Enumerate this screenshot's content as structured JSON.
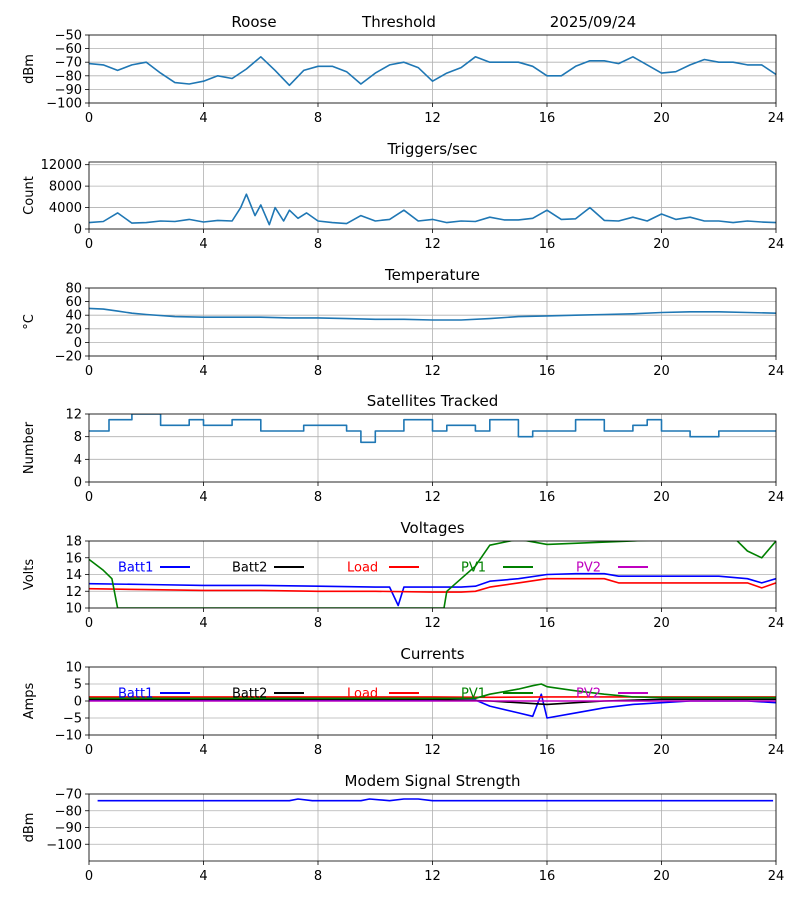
{
  "header": {
    "station": "Roose",
    "label": "Threshold",
    "date": "2025/09/24"
  },
  "chart_data": [
    {
      "id": "threshold",
      "type": "line",
      "title": "",
      "ylabel": "dBm",
      "xlim": [
        0,
        24
      ],
      "xticks": [
        0,
        4,
        8,
        12,
        16,
        20,
        24
      ],
      "ylim": [
        -100,
        -50
      ],
      "yticks": [
        -100,
        -90,
        -80,
        -70,
        -60,
        -50
      ],
      "series": [
        {
          "name": "Threshold",
          "color": "#1f77b4",
          "x": [
            0,
            0.5,
            1,
            1.5,
            2,
            2.5,
            3,
            3.5,
            4,
            4.5,
            5,
            5.5,
            6,
            6.5,
            7,
            7.5,
            8,
            8.5,
            9,
            9.5,
            10,
            10.5,
            11,
            11.5,
            12,
            12.5,
            13,
            13.5,
            14,
            14.5,
            15,
            15.5,
            16,
            16.5,
            17,
            17.5,
            18,
            18.5,
            19,
            19.5,
            20,
            20.5,
            21,
            21.5,
            22,
            22.5,
            23,
            23.5,
            24
          ],
          "y": [
            -71,
            -72,
            -76,
            -72,
            -70,
            -78,
            -85,
            -86,
            -84,
            -80,
            -82,
            -75,
            -66,
            -76,
            -87,
            -76,
            -73,
            -73,
            -77,
            -86,
            -78,
            -72,
            -70,
            -74,
            -84,
            -78,
            -74,
            -66,
            -70,
            -70,
            -70,
            -73,
            -80,
            -80,
            -73,
            -69,
            -69,
            -71,
            -66,
            -72,
            -78,
            -77,
            -72,
            -68,
            -70,
            -70,
            -72,
            -72,
            -79
          ]
        }
      ]
    },
    {
      "id": "triggers",
      "type": "line",
      "title": "Triggers/sec",
      "ylabel": "Count",
      "xlim": [
        0,
        24
      ],
      "xticks": [
        0,
        4,
        8,
        12,
        16,
        20,
        24
      ],
      "ylim": [
        0,
        12500
      ],
      "yticks": [
        0,
        4000,
        8000,
        12000
      ],
      "series": [
        {
          "name": "Triggers",
          "color": "#1f77b4",
          "x": [
            0,
            0.5,
            1,
            1.5,
            2,
            2.5,
            3,
            3.5,
            4,
            4.5,
            5,
            5.3,
            5.5,
            5.8,
            6,
            6.3,
            6.5,
            6.8,
            7,
            7.3,
            7.6,
            8,
            8.5,
            9,
            9.5,
            10,
            10.5,
            11,
            11.5,
            12,
            12.5,
            13,
            13.5,
            14,
            14.5,
            15,
            15.5,
            16,
            16.5,
            17,
            17.5,
            18,
            18.5,
            19,
            19.5,
            20,
            20.5,
            21,
            21.5,
            22,
            22.5,
            23,
            23.5,
            24
          ],
          "y": [
            1200,
            1400,
            3000,
            1100,
            1200,
            1500,
            1400,
            1800,
            1300,
            1600,
            1500,
            4000,
            6500,
            2500,
            4500,
            800,
            4000,
            1500,
            3500,
            2000,
            3000,
            1500,
            1200,
            1000,
            2500,
            1500,
            1800,
            3500,
            1500,
            1800,
            1200,
            1500,
            1400,
            2200,
            1700,
            1700,
            2000,
            3500,
            1800,
            1900,
            4000,
            1600,
            1500,
            2200,
            1500,
            2800,
            1800,
            2200,
            1500,
            1500,
            1200,
            1500,
            1300,
            1200
          ]
        }
      ]
    },
    {
      "id": "temperature",
      "type": "line",
      "title": "Temperature",
      "ylabel": "°C",
      "xlim": [
        0,
        24
      ],
      "xticks": [
        0,
        4,
        8,
        12,
        16,
        20,
        24
      ],
      "ylim": [
        -20,
        80
      ],
      "yticks": [
        -20,
        0,
        20,
        40,
        60,
        80
      ],
      "series": [
        {
          "name": "Temperature",
          "color": "#1f77b4",
          "x": [
            0,
            0.5,
            1,
            1.5,
            2,
            3,
            4,
            5,
            6,
            7,
            8,
            9,
            10,
            11,
            12,
            13,
            14,
            15,
            16,
            17,
            18,
            19,
            20,
            21,
            22,
            23,
            24
          ],
          "y": [
            50,
            49,
            46,
            43,
            41,
            38,
            37,
            37,
            37,
            36,
            36,
            35,
            34,
            34,
            33,
            33,
            35,
            38,
            39,
            40,
            41,
            42,
            44,
            45,
            45,
            44,
            43
          ]
        }
      ]
    },
    {
      "id": "satellites",
      "type": "line",
      "title": "Satellites Tracked",
      "ylabel": "Number",
      "xlim": [
        0,
        24
      ],
      "xticks": [
        0,
        4,
        8,
        12,
        16,
        20,
        24
      ],
      "ylim": [
        0,
        12
      ],
      "yticks": [
        0,
        4,
        8,
        12
      ],
      "series": [
        {
          "name": "Satellites",
          "color": "#1f77b4",
          "step": true,
          "x": [
            0,
            0.7,
            1.5,
            2.5,
            3.5,
            4,
            5,
            6,
            7,
            7.5,
            8,
            9,
            9.5,
            10,
            11,
            12,
            12.5,
            13.5,
            14,
            15,
            15.5,
            16,
            17,
            18,
            19,
            19.5,
            20,
            21,
            22,
            23,
            24
          ],
          "y": [
            9,
            11,
            12,
            10,
            11,
            10,
            11,
            9,
            9,
            10,
            10,
            9,
            7,
            9,
            11,
            9,
            10,
            9,
            11,
            8,
            9,
            9,
            11,
            9,
            10,
            11,
            9,
            8,
            9,
            9,
            9
          ]
        }
      ]
    },
    {
      "id": "voltages",
      "type": "line",
      "title": "Voltages",
      "ylabel": "Volts",
      "xlim": [
        0,
        24
      ],
      "xticks": [
        0,
        4,
        8,
        12,
        16,
        20,
        24
      ],
      "ylim": [
        10,
        18
      ],
      "yticks": [
        10,
        12,
        14,
        16,
        18
      ],
      "series": [
        {
          "name": "Batt1",
          "color": "#0000ff",
          "x": [
            0,
            2,
            4,
            6,
            8,
            10,
            10.5,
            10.8,
            11,
            12,
            13,
            13.5,
            14,
            15,
            16,
            17,
            18,
            18.5,
            20,
            22,
            23,
            23.5,
            24
          ],
          "y": [
            12.9,
            12.8,
            12.7,
            12.7,
            12.6,
            12.5,
            12.5,
            10.3,
            12.5,
            12.5,
            12.5,
            12.6,
            13.2,
            13.5,
            14,
            14.1,
            14.1,
            13.8,
            13.8,
            13.8,
            13.5,
            13,
            13.5
          ]
        },
        {
          "name": "Batt2",
          "color": "#000000",
          "x": [],
          "y": []
        },
        {
          "name": "Load",
          "color": "#ff0000",
          "x": [
            0,
            2,
            4,
            6,
            8,
            10,
            12,
            13,
            13.5,
            14,
            15,
            16,
            17,
            18,
            18.5,
            20,
            22,
            23,
            23.5,
            24
          ],
          "y": [
            12.3,
            12.2,
            12.1,
            12.1,
            12,
            12,
            11.9,
            11.9,
            12,
            12.5,
            13,
            13.5,
            13.5,
            13.5,
            13,
            13,
            13,
            13,
            12.4,
            13
          ]
        },
        {
          "name": "PV1",
          "color": "#008000",
          "x": [
            0,
            0.5,
            0.8,
            1,
            12.4,
            12.5,
            13,
            13.5,
            14,
            15,
            16,
            22.5,
            23,
            23.5,
            24
          ],
          "y": [
            15.8,
            14.5,
            13.5,
            10,
            10,
            12,
            13.5,
            15,
            17.5,
            18.2,
            17.6,
            18.5,
            16.8,
            16,
            18
          ]
        },
        {
          "name": "PV2",
          "color": "#bf00bf",
          "x": [],
          "y": []
        }
      ]
    },
    {
      "id": "currents",
      "type": "line",
      "title": "Currents",
      "ylabel": "Amps",
      "xlim": [
        0,
        24
      ],
      "xticks": [
        0,
        4,
        8,
        12,
        16,
        20,
        24
      ],
      "ylim": [
        -10,
        10
      ],
      "yticks": [
        -10,
        -5,
        0,
        5,
        10
      ],
      "series": [
        {
          "name": "Batt1",
          "color": "#0000ff",
          "x": [
            0,
            4,
            8,
            12,
            13.5,
            14,
            15,
            15.5,
            15.8,
            16,
            17,
            18,
            19,
            20,
            21,
            22,
            23,
            24
          ],
          "y": [
            0.3,
            0.3,
            0.3,
            0.3,
            0.3,
            -1.5,
            -3.5,
            -4.5,
            2,
            -5,
            -3.5,
            -2,
            -1,
            -0.5,
            0,
            0,
            0,
            -0.5
          ]
        },
        {
          "name": "Batt2",
          "color": "#000000",
          "x": [
            0,
            4,
            8,
            12,
            14,
            15,
            16,
            17,
            18,
            20,
            24
          ],
          "y": [
            0.5,
            0.5,
            0.5,
            0.5,
            0,
            -0.5,
            -1,
            -0.5,
            0,
            0.5,
            0.5
          ]
        },
        {
          "name": "Load",
          "color": "#ff0000",
          "x": [
            0,
            4,
            8,
            12,
            14,
            16,
            18,
            20,
            24
          ],
          "y": [
            1.2,
            1.2,
            1.2,
            1.2,
            1.1,
            1.2,
            1.2,
            1.2,
            1.2
          ]
        },
        {
          "name": "PV1",
          "color": "#008000",
          "x": [
            0,
            4,
            8,
            12,
            13.5,
            14,
            15,
            15.5,
            15.8,
            16,
            17,
            18,
            19,
            20,
            22,
            24
          ],
          "y": [
            0.8,
            0.8,
            0.8,
            0.8,
            0.8,
            2,
            3.5,
            4.5,
            5,
            4.2,
            3,
            2,
            1.2,
            1,
            1,
            1
          ]
        },
        {
          "name": "PV2",
          "color": "#bf00bf",
          "x": [
            0,
            24
          ],
          "y": [
            0,
            0
          ]
        }
      ]
    },
    {
      "id": "modem",
      "type": "line",
      "title": "Modem Signal Strength",
      "ylabel": "dBm",
      "xlim": [
        0,
        24
      ],
      "xticks": [
        0,
        4,
        8,
        12,
        16,
        20,
        24
      ],
      "ylim": [
        -110,
        -70
      ],
      "yticks": [
        -100,
        -90,
        -80,
        -70
      ],
      "series": [
        {
          "name": "Modem",
          "color": "#0000ff",
          "x": [
            0.3,
            2,
            4,
            6,
            7,
            7.3,
            7.8,
            8,
            9,
            9.5,
            9.8,
            10.5,
            11,
            11.5,
            12,
            14,
            16,
            18,
            20,
            22,
            23.9
          ],
          "y": [
            -74,
            -74,
            -74,
            -74,
            -74,
            -73,
            -74,
            -74,
            -74,
            -74,
            -73,
            -74,
            -73,
            -73,
            -74,
            -74,
            -74,
            -74,
            -74,
            -74,
            -74
          ]
        }
      ]
    }
  ]
}
